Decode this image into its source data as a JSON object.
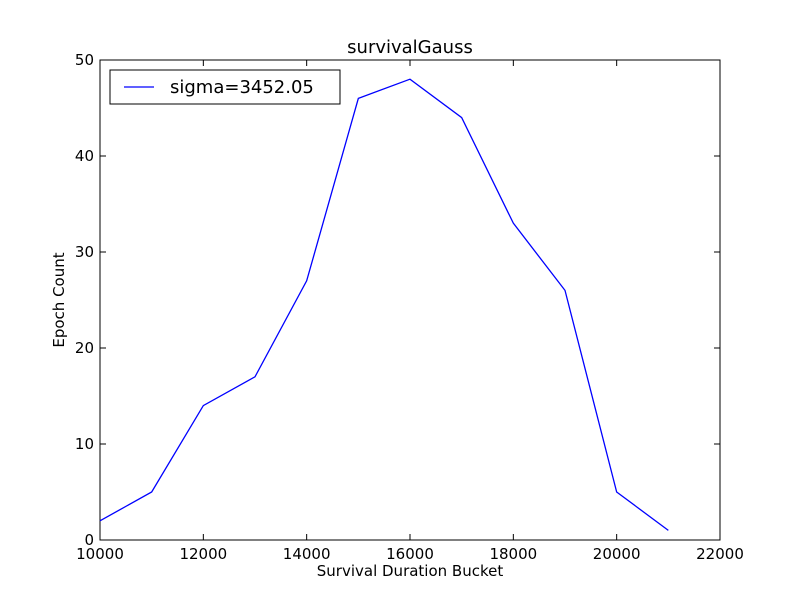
{
  "chart_data": {
    "type": "line",
    "title": "survivalGauss",
    "xlabel": "Survival Duration Bucket",
    "ylabel": "Epoch Count",
    "xlim": [
      10000,
      22000
    ],
    "ylim": [
      0,
      50
    ],
    "xticks": [
      10000,
      12000,
      14000,
      16000,
      18000,
      20000,
      22000
    ],
    "yticks": [
      0,
      10,
      20,
      30,
      40,
      50
    ],
    "grid": false,
    "legend_position": "top-left",
    "series": [
      {
        "name": "sigma=3452.05",
        "color": "#0000ff",
        "x": [
          10000,
          11000,
          12000,
          13000,
          14000,
          15000,
          16000,
          17000,
          18000,
          19000,
          20000,
          21000
        ],
        "y": [
          2,
          5,
          14,
          17,
          27,
          46,
          48,
          44,
          33,
          26,
          5,
          1
        ]
      }
    ]
  }
}
